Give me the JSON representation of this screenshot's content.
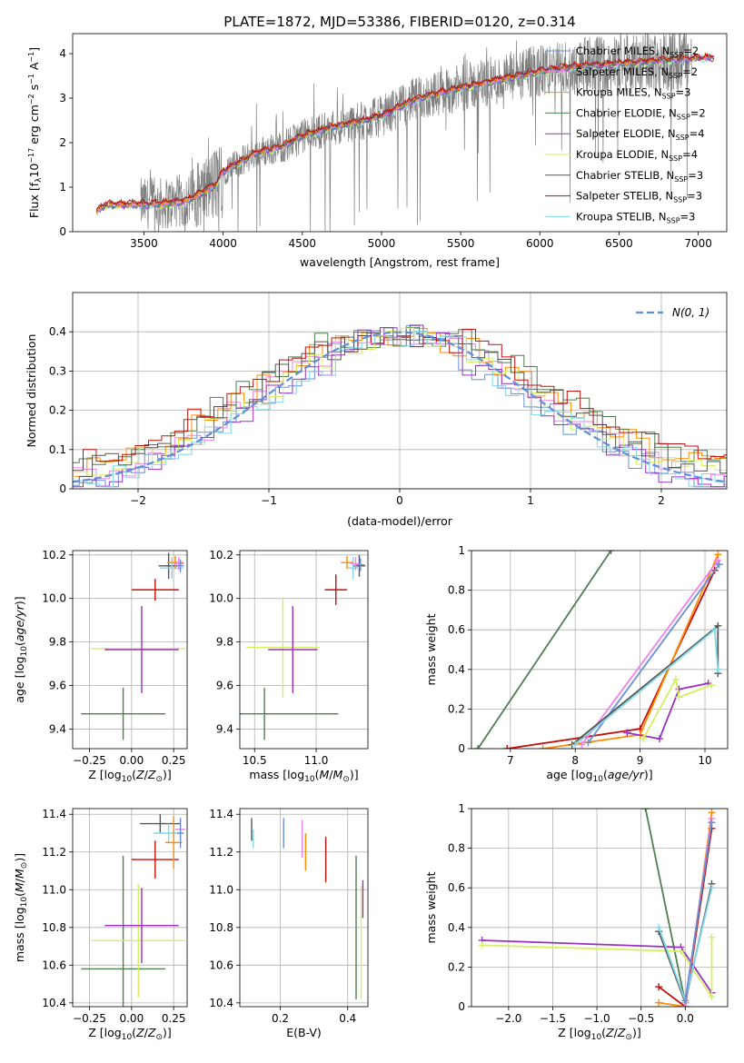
{
  "figure": {
    "title": "PLATE=1872, MJD=53386, FIBERID=0120, z=0.314"
  },
  "colors": {
    "Chabrier MILES": "#6a8fd8",
    "Salpeter MILES": "#ee82ee",
    "Kroupa MILES": "#ff8c00",
    "Chabrier ELODIE": "#4f7f4f",
    "Salpeter ELODIE": "#9b30c0",
    "Kroupa ELODIE": "#d4f060",
    "Chabrier STELIB": "#555555",
    "Salpeter STELIB": "#c0100e",
    "Kroupa STELIB": "#7fd8e8",
    "data": "#808080",
    "gauss": "#5f8fd8"
  },
  "chart_data": [
    {
      "type": "line",
      "panel": "spectrum",
      "title": "PLATE=1872, MJD=53386, FIBERID=0120, z=0.314",
      "xlabel": "wavelength [Angstrom, rest frame]",
      "ylabel": "Flux [f_λ 10^-17 erg cm^-2 s^-1 A^-1]",
      "xlim": [
        3050,
        7180
      ],
      "ylim": [
        0,
        4.45
      ],
      "xticks": [
        3500,
        4000,
        4500,
        5000,
        5500,
        6000,
        6500,
        7000
      ],
      "yticks": [
        0,
        1,
        2,
        3,
        4
      ],
      "legend_location": "top-right",
      "legend": [
        {
          "model": "Chabrier MILES",
          "nssp": "2"
        },
        {
          "model": "Salpeter MILES",
          "nssp": "2"
        },
        {
          "model": "Kroupa MILES",
          "nssp": "3"
        },
        {
          "model": "Chabrier ELODIE",
          "nssp": "2"
        },
        {
          "model": "Salpeter ELODIE",
          "nssp": "4"
        },
        {
          "model": "Kroupa ELODIE",
          "nssp": "4"
        },
        {
          "model": "Chabrier STELIB",
          "nssp": "3"
        },
        {
          "model": "Salpeter STELIB",
          "nssp": "3"
        },
        {
          "model": "Kroupa STELIB",
          "nssp": "3"
        }
      ],
      "continuum": [
        [
          3200,
          0.45
        ],
        [
          3250,
          0.6
        ],
        [
          3400,
          0.62
        ],
        [
          3600,
          0.63
        ],
        [
          3700,
          0.65
        ],
        [
          3800,
          0.75
        ],
        [
          3900,
          0.95
        ],
        [
          3950,
          1.05
        ],
        [
          4000,
          1.35
        ],
        [
          4100,
          1.55
        ],
        [
          4200,
          1.75
        ],
        [
          4300,
          1.85
        ],
        [
          4400,
          1.95
        ],
        [
          4500,
          2.15
        ],
        [
          4700,
          2.35
        ],
        [
          4900,
          2.5
        ],
        [
          5000,
          2.6
        ],
        [
          5200,
          2.95
        ],
        [
          5400,
          3.15
        ],
        [
          5600,
          3.3
        ],
        [
          5800,
          3.45
        ],
        [
          6000,
          3.6
        ],
        [
          6200,
          3.7
        ],
        [
          6400,
          3.75
        ],
        [
          6600,
          3.8
        ],
        [
          6800,
          3.85
        ],
        [
          7000,
          3.9
        ],
        [
          7100,
          3.9
        ]
      ],
      "data_range": [
        3480,
        6960
      ]
    },
    {
      "type": "line",
      "panel": "residuals",
      "xlabel": "(data-model)/error",
      "ylabel": "Normed distribution",
      "xlim": [
        -2.5,
        2.5
      ],
      "ylim": [
        0,
        0.5
      ],
      "xticks": [
        -2,
        -1,
        0,
        1,
        2
      ],
      "yticks": [
        0.0,
        0.1,
        0.2,
        0.3,
        0.4
      ],
      "legend_location": "top-right",
      "gauss_label": "N(0, 1)"
    },
    {
      "type": "scatter",
      "panel": "age-vs-Z",
      "xlabel": "Z [log10(Z/Z⊙)]",
      "ylabel": "age [log10(age/yr)]",
      "xlim": [
        -0.35,
        0.33
      ],
      "ylim": [
        9.31,
        10.22
      ],
      "xticks": [
        -0.25,
        0.0,
        0.25
      ],
      "xticklabels": [
        "−0.25",
        "0.00",
        "0.25"
      ],
      "yticks": [
        9.4,
        9.6,
        9.8,
        10.0,
        10.2
      ],
      "yticklabels": [
        "9.4",
        "9.6",
        "9.8",
        "10.0",
        "10.2"
      ],
      "points": [
        {
          "model": "Chabrier ELODIE",
          "x": -0.05,
          "xerr": 0.25,
          "y": 9.47,
          "yerr": 0.12
        },
        {
          "model": "Kroupa ELODIE",
          "x": 0.04,
          "xerr": 0.28,
          "y": 9.77,
          "yerr": 0.0
        },
        {
          "model": "Salpeter ELODIE",
          "x": 0.06,
          "xerr": 0.22,
          "y": 9.765,
          "yerr": 0.2
        },
        {
          "model": "Salpeter STELIB",
          "x": 0.14,
          "xerr": 0.14,
          "y": 10.04,
          "yerr": 0.05
        },
        {
          "model": "Chabrier STELIB",
          "x": 0.22,
          "xerr": 0.06,
          "y": 10.15,
          "yerr": 0.06
        },
        {
          "model": "Kroupa STELIB",
          "x": 0.24,
          "xerr": 0.07,
          "y": 10.14,
          "yerr": 0.05
        },
        {
          "model": "Kroupa MILES",
          "x": 0.26,
          "xerr": 0.05,
          "y": 10.165,
          "yerr": 0.03
        },
        {
          "model": "Salpeter MILES",
          "x": 0.28,
          "xerr": 0.03,
          "y": 10.16,
          "yerr": 0.03
        },
        {
          "model": "Chabrier MILES",
          "x": 0.29,
          "xerr": 0.02,
          "y": 10.15,
          "yerr": 0.03
        }
      ]
    },
    {
      "type": "scatter",
      "panel": "age-vs-mass",
      "xlabel": "mass [log10(M/M⊙)]",
      "ylabel": "",
      "xlim": [
        10.38,
        11.42
      ],
      "ylim": [
        9.31,
        10.22
      ],
      "xticks": [
        10.5,
        11.0
      ],
      "xticklabels": [
        "10.5",
        "11.0"
      ],
      "yticks": [
        9.4,
        9.6,
        9.8,
        10.0,
        10.2
      ],
      "yticklabels": [
        "9.4",
        "9.6",
        "9.8",
        "10.0",
        "10.2"
      ],
      "points": [
        {
          "model": "Chabrier ELODIE",
          "x": 10.58,
          "xerr": 0.6,
          "y": 9.47,
          "yerr": 0.12
        },
        {
          "model": "Kroupa ELODIE",
          "x": 10.73,
          "xerr": 0.3,
          "y": 9.775,
          "yerr": 0.23
        },
        {
          "model": "Salpeter ELODIE",
          "x": 10.81,
          "xerr": 0.2,
          "y": 9.765,
          "yerr": 0.2
        },
        {
          "model": "Salpeter STELIB",
          "x": 11.16,
          "xerr": 0.09,
          "y": 10.04,
          "yerr": 0.07
        },
        {
          "model": "Chabrier STELIB",
          "x": 11.35,
          "xerr": 0.05,
          "y": 10.15,
          "yerr": 0.05
        },
        {
          "model": "Kroupa STELIB",
          "x": 11.3,
          "xerr": 0.05,
          "y": 10.14,
          "yerr": 0.05
        },
        {
          "model": "Kroupa MILES",
          "x": 11.25,
          "xerr": 0.05,
          "y": 10.165,
          "yerr": 0.03
        },
        {
          "model": "Salpeter MILES",
          "x": 11.32,
          "xerr": 0.04,
          "y": 10.16,
          "yerr": 0.03
        },
        {
          "model": "Chabrier MILES",
          "x": 11.36,
          "xerr": 0.03,
          "y": 10.155,
          "yerr": 0.03
        }
      ]
    },
    {
      "type": "line",
      "panel": "massweight-vs-age",
      "xlabel": "age [log10(age/yr)]",
      "ylabel": "mass weight",
      "xlim": [
        6.4,
        10.35
      ],
      "ylim": [
        0,
        1
      ],
      "xticks": [
        7,
        8,
        9,
        10
      ],
      "yticks": [
        0.0,
        0.2,
        0.4,
        0.6,
        0.8,
        1.0
      ],
      "series": [
        {
          "model": "Chabrier ELODIE",
          "points": [
            [
              6.5,
              0.0
            ],
            [
              8.55,
              1.0
            ]
          ]
        },
        {
          "model": "Salpeter STELIB",
          "points": [
            [
              6.95,
              0.0
            ],
            [
              9.0,
              0.1
            ],
            [
              10.15,
              0.9
            ]
          ]
        },
        {
          "model": "Kroupa MILES",
          "points": [
            [
              7.5,
              0.0
            ],
            [
              9.0,
              0.07
            ],
            [
              10.2,
              0.98
            ]
          ]
        },
        {
          "model": "Salpeter MILES",
          "points": [
            [
              8.1,
              0.02
            ],
            [
              10.2,
              0.95
            ]
          ]
        },
        {
          "model": "Chabrier MILES",
          "points": [
            [
              8.2,
              0.03
            ],
            [
              10.22,
              0.93
            ]
          ]
        },
        {
          "model": "Chabrier STELIB",
          "points": [
            [
              7.95,
              0.02
            ],
            [
              10.2,
              0.62
            ],
            [
              10.2,
              0.38
            ]
          ]
        },
        {
          "model": "Kroupa STELIB",
          "points": [
            [
              8.0,
              0.02
            ],
            [
              10.15,
              0.6
            ],
            [
              10.2,
              0.4
            ]
          ]
        },
        {
          "model": "Salpeter ELODIE",
          "points": [
            [
              8.8,
              0.08
            ],
            [
              9.3,
              0.05
            ],
            [
              9.6,
              0.3
            ],
            [
              10.05,
              0.33
            ]
          ]
        },
        {
          "model": "Kroupa ELODIE",
          "points": [
            [
              9.05,
              0.05
            ],
            [
              9.55,
              0.35
            ],
            [
              9.6,
              0.26
            ],
            [
              10.1,
              0.32
            ]
          ]
        }
      ]
    },
    {
      "type": "scatter",
      "panel": "mass-vs-Z",
      "xlabel": "Z [log10(Z/Z⊙)]",
      "ylabel": "mass [log10(M/M⊙)]",
      "xlim": [
        -0.35,
        0.33
      ],
      "ylim": [
        10.38,
        11.43
      ],
      "xticks": [
        -0.25,
        0.0,
        0.25
      ],
      "xticklabels": [
        "−0.25",
        "0.00",
        "0.25"
      ],
      "yticks": [
        10.4,
        10.6,
        10.8,
        11.0,
        11.2,
        11.4
      ],
      "yticklabels": [
        "10.4",
        "10.6",
        "10.8",
        "11.0",
        "11.2",
        "11.4"
      ],
      "points": [
        {
          "model": "Chabrier ELODIE",
          "x": -0.05,
          "xerr": 0.25,
          "y": 10.58,
          "yerr": 0.6
        },
        {
          "model": "Kroupa ELODIE",
          "x": 0.04,
          "xerr": 0.28,
          "y": 10.73,
          "yerr": 0.3
        },
        {
          "model": "Salpeter ELODIE",
          "x": 0.06,
          "xerr": 0.22,
          "y": 10.81,
          "yerr": 0.2
        },
        {
          "model": "Salpeter STELIB",
          "x": 0.14,
          "xerr": 0.14,
          "y": 11.16,
          "yerr": 0.1
        },
        {
          "model": "Chabrier STELIB",
          "x": 0.17,
          "xerr": 0.12,
          "y": 11.35,
          "yerr": 0.05
        },
        {
          "model": "Kroupa STELIB",
          "x": 0.22,
          "xerr": 0.09,
          "y": 11.3,
          "yerr": 0.05
        },
        {
          "model": "Kroupa MILES",
          "x": 0.25,
          "xerr": 0.05,
          "y": 11.25,
          "yerr": 0.14
        },
        {
          "model": "Salpeter MILES",
          "x": 0.29,
          "xerr": 0.03,
          "y": 11.32,
          "yerr": 0.06
        },
        {
          "model": "Chabrier MILES",
          "x": 0.29,
          "xerr": 0.02,
          "y": 11.3,
          "yerr": 0.08
        }
      ]
    },
    {
      "type": "scatter",
      "panel": "mass-vs-EBV",
      "xlabel": "E(B-V)",
      "ylabel": "",
      "xlim": [
        0.08,
        0.46
      ],
      "ylim": [
        10.38,
        11.43
      ],
      "xticks": [
        0.2,
        0.4
      ],
      "xticklabels": [
        "0.2",
        "0.4"
      ],
      "yticks": [
        10.4,
        10.6,
        10.8,
        11.0,
        11.2,
        11.4
      ],
      "yticklabels": [
        "10.4",
        "10.6",
        "10.8",
        "11.0",
        "11.2",
        "11.4"
      ],
      "points": [
        {
          "model": "Chabrier STELIB",
          "x": 0.115,
          "y": 11.32,
          "yerr": 0.06
        },
        {
          "model": "Kroupa STELIB",
          "x": 0.12,
          "y": 11.27,
          "yerr": 0.05
        },
        {
          "model": "Chabrier MILES",
          "x": 0.21,
          "y": 11.3,
          "yerr": 0.08
        },
        {
          "model": "Salpeter MILES",
          "x": 0.265,
          "y": 11.27,
          "yerr": 0.1
        },
        {
          "model": "Kroupa MILES",
          "x": 0.275,
          "y": 11.2,
          "yerr": 0.1
        },
        {
          "model": "Salpeter STELIB",
          "x": 0.335,
          "y": 11.16,
          "yerr": 0.12
        },
        {
          "model": "Chabrier ELODIE",
          "x": 0.425,
          "y": 10.8,
          "yerr": 0.38
        },
        {
          "model": "Kroupa ELODIE",
          "x": 0.44,
          "y": 10.72,
          "yerr": 0.3
        },
        {
          "model": "Salpeter ELODIE",
          "x": 0.445,
          "y": 10.95,
          "yerr": 0.1
        }
      ]
    },
    {
      "type": "line",
      "panel": "massweight-vs-Z",
      "xlabel": "Z [log10(Z/Z⊙)]",
      "ylabel": "mass weight",
      "xlim": [
        -2.42,
        0.48
      ],
      "ylim": [
        0,
        1
      ],
      "xticks": [
        -2.0,
        -1.5,
        -1.0,
        -0.5,
        0.0
      ],
      "xticklabels": [
        "−2.0",
        "−1.5",
        "−1.0",
        "−0.5",
        "0.0"
      ],
      "yticks": [
        0.0,
        0.2,
        0.4,
        0.6,
        0.8,
        1.0
      ],
      "series": [
        {
          "model": "Chabrier ELODIE",
          "points": [
            [
              -0.45,
              1.0
            ],
            [
              0.0,
              0.02
            ]
          ]
        },
        {
          "model": "Salpeter ELODIE",
          "points": [
            [
              -2.3,
              0.335
            ],
            [
              -0.05,
              0.3
            ],
            [
              0.3,
              0.07
            ]
          ]
        },
        {
          "model": "Kroupa ELODIE",
          "points": [
            [
              -2.3,
              0.31
            ],
            [
              -0.05,
              0.28
            ],
            [
              0.3,
              0.05
            ],
            [
              0.3,
              0.35
            ]
          ]
        },
        {
          "model": "Salpeter STELIB",
          "points": [
            [
              -0.3,
              0.1
            ],
            [
              0.0,
              0.0
            ],
            [
              0.3,
              0.9
            ]
          ]
        },
        {
          "model": "Kroupa MILES",
          "points": [
            [
              -0.3,
              0.02
            ],
            [
              0.0,
              0.0
            ],
            [
              0.3,
              0.98
            ]
          ]
        },
        {
          "model": "Chabrier STELIB",
          "points": [
            [
              -0.3,
              0.38
            ],
            [
              0.0,
              0.02
            ],
            [
              0.3,
              0.62
            ]
          ]
        },
        {
          "model": "Kroupa STELIB",
          "points": [
            [
              -0.3,
              0.4
            ],
            [
              0.0,
              0.03
            ],
            [
              0.3,
              0.6
            ]
          ]
        },
        {
          "model": "Salpeter MILES",
          "points": [
            [
              0.0,
              0.02
            ],
            [
              0.3,
              0.95
            ]
          ]
        },
        {
          "model": "Chabrier MILES",
          "points": [
            [
              0.0,
              0.03
            ],
            [
              0.3,
              0.93
            ]
          ]
        }
      ]
    }
  ]
}
